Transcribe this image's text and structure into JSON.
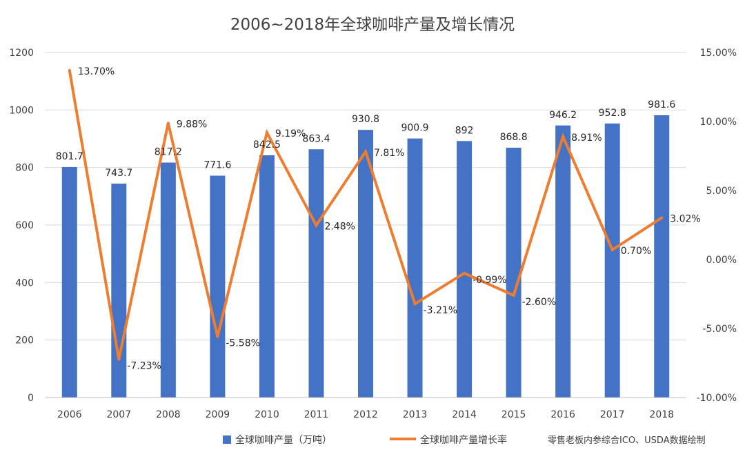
{
  "chart_data": {
    "type": "bar",
    "title": "2006~2018年全球咖啡产量及增长情况",
    "categories": [
      "2006",
      "2007",
      "2008",
      "2009",
      "2010",
      "2011",
      "2012",
      "2013",
      "2014",
      "2015",
      "2016",
      "2017",
      "2018"
    ],
    "series": [
      {
        "name": "全球咖啡产量（万吨）",
        "type": "bar",
        "axis": "left",
        "color": "#4472C4",
        "values": [
          801.7,
          743.7,
          817.2,
          771.6,
          842.5,
          863.4,
          930.8,
          900.9,
          892,
          868.8,
          946.2,
          952.8,
          981.6
        ],
        "labels": [
          "801.7",
          "743.7",
          "817.2",
          "771.6",
          "842.5",
          "863.4",
          "930.8",
          "900.9",
          "892",
          "868.8",
          "946.2",
          "952.8",
          "981.6"
        ]
      },
      {
        "name": "全球咖啡产量增长率",
        "type": "line",
        "axis": "right",
        "color": "#ED7D31",
        "values": [
          13.7,
          -7.23,
          9.88,
          -5.58,
          9.19,
          2.48,
          7.81,
          -3.21,
          -0.99,
          -2.6,
          8.91,
          0.7,
          3.02
        ],
        "labels": [
          "13.70%",
          "-7.23%",
          "9.88%",
          "-5.58%",
          "9.19%",
          "2.48%",
          "7.81%",
          "-3.21%",
          "-0.99%",
          "-2.60%",
          "8.91%",
          "0.70%",
          "3.02%"
        ]
      }
    ],
    "ylim_left": [
      0,
      1200
    ],
    "yticks_left": [
      "0",
      "200",
      "400",
      "600",
      "800",
      "1000",
      "1200"
    ],
    "ylim_right": [
      -10,
      15
    ],
    "yticks_right": [
      "-10.00%",
      "-5.00%",
      "0.00%",
      "5.00%",
      "10.00%",
      "15.00%"
    ],
    "grid": true,
    "legend_position": "bottom"
  },
  "source_note": "零售老板内参综合ICO、USDA数据绘制"
}
